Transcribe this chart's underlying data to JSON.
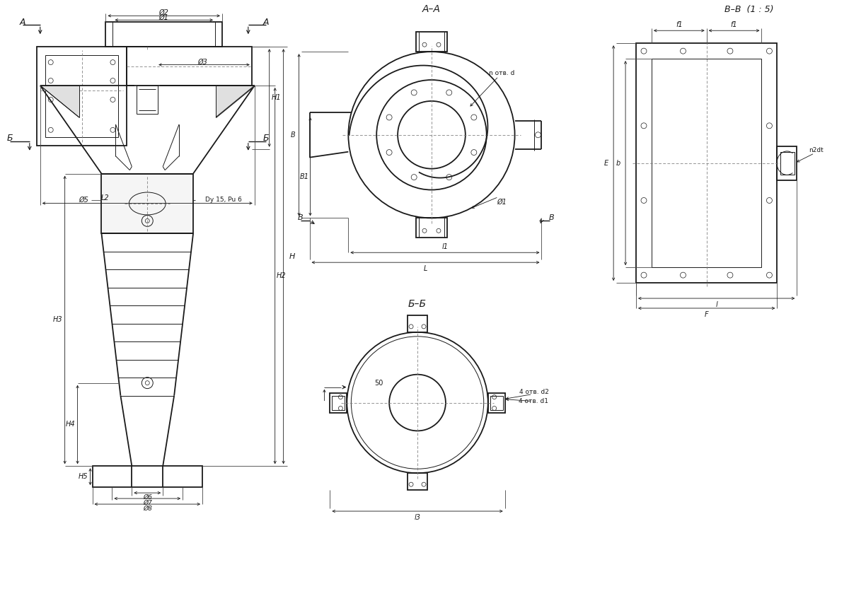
{
  "bg_color": "#ffffff",
  "line_color": "#1a1a1a",
  "section_AA": "А–А",
  "section_BB": "Б–Б",
  "section_VV": "В–В  (1 : 5)",
  "dim_D1": "Ø1",
  "dim_D2": "Ø2",
  "dim_D3": "Ø3",
  "dim_D5": "Ø5",
  "dim_D6": "Ø6",
  "dim_D7": "Ø7",
  "dim_D8": "Ø8",
  "dim_H": "H",
  "dim_H1": "H1",
  "dim_H2": "H2",
  "dim_H3": "H3",
  "dim_H4": "H4",
  "dim_H5": "H5",
  "dim_L": "L",
  "dim_L1": "l1",
  "dim_L2": "L2",
  "dim_L3": "l3",
  "dim_B": "B",
  "dim_B1": "B1",
  "dim_b": "b",
  "dim_E": "E",
  "dim_F": "F",
  "dim_f1": "f1",
  "dim_l": "l",
  "dim_n_otv_d": "n отв. d",
  "dim_4otv_d1": "4 отв. d1",
  "dim_4otv_d2": "4 отв. d2",
  "dim_50": "50",
  "dim_Dy15Pu6": "Dy 15, Pu 6",
  "dim_n2dt": "n2dt"
}
